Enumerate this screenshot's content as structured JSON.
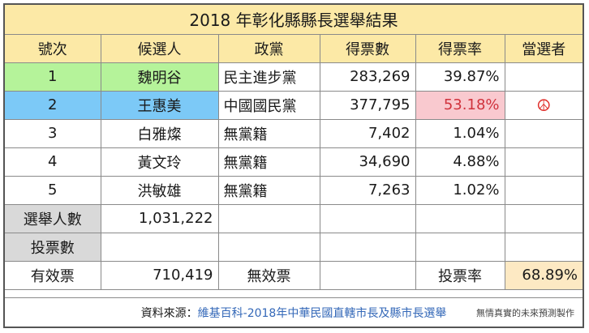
{
  "title": "2018 年彰化縣縣長選舉結果",
  "headers": [
    "號次",
    "候選人",
    "政黨",
    "得票數",
    "得票率",
    "當選者"
  ],
  "candidates": [
    {
      "no": "1",
      "name": "魏明谷",
      "party": "民主進步黨",
      "votes": "283,269",
      "pct": "39.87%",
      "elected": ""
    },
    {
      "no": "2",
      "name": "王惠美",
      "party": "中國國民黨",
      "votes": "377,795",
      "pct": "53.18%",
      "elected": "☮"
    },
    {
      "no": "3",
      "name": "白雅燦",
      "party": "無黨籍",
      "votes": "7,402",
      "pct": "1.04%",
      "elected": ""
    },
    {
      "no": "4",
      "name": "黃文玲",
      "party": "無黨籍",
      "votes": "34,690",
      "pct": "4.88%",
      "elected": ""
    },
    {
      "no": "5",
      "name": "洪敏雄",
      "party": "無黨籍",
      "votes": "7,263",
      "pct": "1.02%",
      "elected": ""
    }
  ],
  "summary": {
    "electorate_label": "選舉人數",
    "electorate_value": "1,031,222",
    "ballots_label": "投票數",
    "ballots_value": "",
    "valid_label": "有效票",
    "valid_value": "710,419",
    "invalid_label": "無效票",
    "invalid_value": "",
    "turnout_label": "投票率",
    "turnout_value": "68.89%"
  },
  "footer": {
    "source_label": "資料來源：",
    "source_link": "維基百科-2018年中華民國直轄市長及縣市長選舉",
    "note": "無情真實的未來預測製作"
  },
  "colors": {
    "header_bg": "#fce9a6",
    "dpp_green": "#b5f39a",
    "kmt_blue": "#7cc9f7",
    "winner_pct_bg": "#f9c9cf",
    "winner_mark": "#e0302c"
  }
}
